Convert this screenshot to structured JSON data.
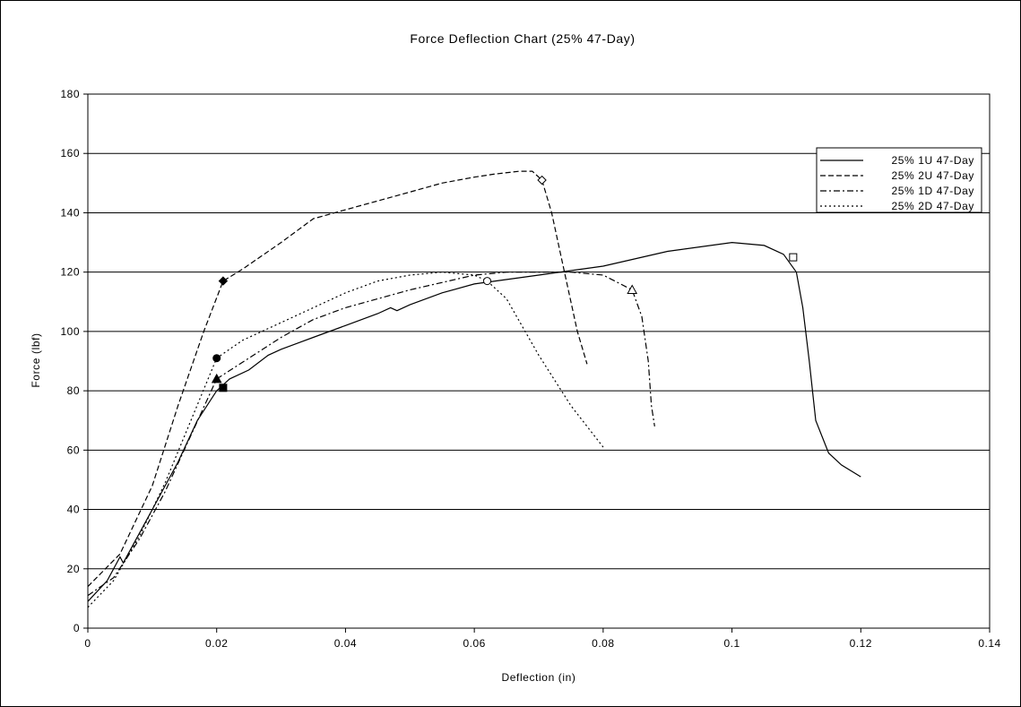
{
  "chart_data": {
    "type": "line",
    "title": "Force Deflection Chart (25% 47-Day)",
    "xlabel": "Deflection (in)",
    "ylabel": "Force (lbf)",
    "xlim": [
      0,
      0.14
    ],
    "ylim": [
      0,
      180
    ],
    "x_ticks": [
      "0",
      "0.02",
      "0.04",
      "0.06",
      "0.08",
      "0.1",
      "0.12",
      "0.14"
    ],
    "y_ticks": [
      "0",
      "20",
      "40",
      "60",
      "80",
      "100",
      "120",
      "140",
      "160",
      "180"
    ],
    "grid": "horizontal",
    "legend_position": "top-right",
    "series": [
      {
        "name": "25% 1U 47-Day",
        "style": "solid",
        "points": [
          [
            0,
            9
          ],
          [
            0.003,
            16
          ],
          [
            0.005,
            24
          ],
          [
            0.0055,
            22
          ],
          [
            0.007,
            28
          ],
          [
            0.01,
            40
          ],
          [
            0.014,
            56
          ],
          [
            0.017,
            70
          ],
          [
            0.02,
            80
          ],
          [
            0.022,
            84
          ],
          [
            0.025,
            87
          ],
          [
            0.028,
            92
          ],
          [
            0.03,
            94
          ],
          [
            0.035,
            98
          ],
          [
            0.04,
            102
          ],
          [
            0.045,
            106
          ],
          [
            0.047,
            108
          ],
          [
            0.048,
            107
          ],
          [
            0.05,
            109
          ],
          [
            0.055,
            113
          ],
          [
            0.06,
            116
          ],
          [
            0.07,
            119
          ],
          [
            0.08,
            122
          ],
          [
            0.09,
            127
          ],
          [
            0.1,
            130
          ],
          [
            0.105,
            129
          ],
          [
            0.108,
            126
          ],
          [
            0.11,
            120
          ],
          [
            0.111,
            108
          ],
          [
            0.112,
            90
          ],
          [
            0.113,
            70
          ],
          [
            0.115,
            59
          ],
          [
            0.117,
            55
          ],
          [
            0.12,
            51
          ]
        ],
        "markers": [
          {
            "x": 0.021,
            "y": 81,
            "shape": "square",
            "filled": true
          },
          {
            "x": 0.1095,
            "y": 125,
            "shape": "square",
            "filled": false
          }
        ]
      },
      {
        "name": "25% 2U 47-Day",
        "style": "dashed",
        "points": [
          [
            0,
            14
          ],
          [
            0.005,
            25
          ],
          [
            0.01,
            48
          ],
          [
            0.014,
            75
          ],
          [
            0.018,
            100
          ],
          [
            0.021,
            117
          ],
          [
            0.024,
            121
          ],
          [
            0.03,
            130
          ],
          [
            0.035,
            138
          ],
          [
            0.04,
            141
          ],
          [
            0.045,
            144
          ],
          [
            0.05,
            147
          ],
          [
            0.055,
            150
          ],
          [
            0.06,
            152
          ],
          [
            0.063,
            153
          ],
          [
            0.067,
            154
          ],
          [
            0.069,
            154
          ],
          [
            0.0705,
            151
          ],
          [
            0.072,
            140
          ],
          [
            0.074,
            120
          ],
          [
            0.076,
            100
          ],
          [
            0.0775,
            89
          ]
        ],
        "markers": [
          {
            "x": 0.021,
            "y": 117,
            "shape": "diamond",
            "filled": true
          },
          {
            "x": 0.0705,
            "y": 151,
            "shape": "diamond",
            "filled": false
          }
        ]
      },
      {
        "name": "25% 1D 47-Day",
        "style": "dashdot",
        "points": [
          [
            0,
            11
          ],
          [
            0.004,
            17
          ],
          [
            0.008,
            30
          ],
          [
            0.012,
            46
          ],
          [
            0.016,
            65
          ],
          [
            0.02,
            84
          ],
          [
            0.025,
            91
          ],
          [
            0.03,
            98
          ],
          [
            0.035,
            104
          ],
          [
            0.04,
            108
          ],
          [
            0.05,
            114
          ],
          [
            0.06,
            119
          ],
          [
            0.065,
            120
          ],
          [
            0.075,
            120
          ],
          [
            0.08,
            119
          ],
          [
            0.0845,
            114
          ],
          [
            0.086,
            105
          ],
          [
            0.087,
            90
          ],
          [
            0.0875,
            75
          ],
          [
            0.088,
            68
          ]
        ],
        "markers": [
          {
            "x": 0.02,
            "y": 84,
            "shape": "triangle",
            "filled": true
          },
          {
            "x": 0.0845,
            "y": 114,
            "shape": "triangle",
            "filled": false
          }
        ]
      },
      {
        "name": "25% 2D 47-Day",
        "style": "dotted",
        "points": [
          [
            0,
            7
          ],
          [
            0.004,
            16
          ],
          [
            0.008,
            31
          ],
          [
            0.012,
            49
          ],
          [
            0.016,
            70
          ],
          [
            0.02,
            91
          ],
          [
            0.024,
            97
          ],
          [
            0.03,
            103
          ],
          [
            0.035,
            108
          ],
          [
            0.04,
            113
          ],
          [
            0.045,
            117
          ],
          [
            0.05,
            119
          ],
          [
            0.055,
            120
          ],
          [
            0.06,
            119
          ],
          [
            0.062,
            117
          ],
          [
            0.065,
            111
          ],
          [
            0.07,
            92
          ],
          [
            0.075,
            75
          ],
          [
            0.08,
            61
          ]
        ],
        "markers": [
          {
            "x": 0.02,
            "y": 91,
            "shape": "circle",
            "filled": true
          },
          {
            "x": 0.062,
            "y": 117,
            "shape": "circle",
            "filled": false
          }
        ]
      }
    ]
  }
}
